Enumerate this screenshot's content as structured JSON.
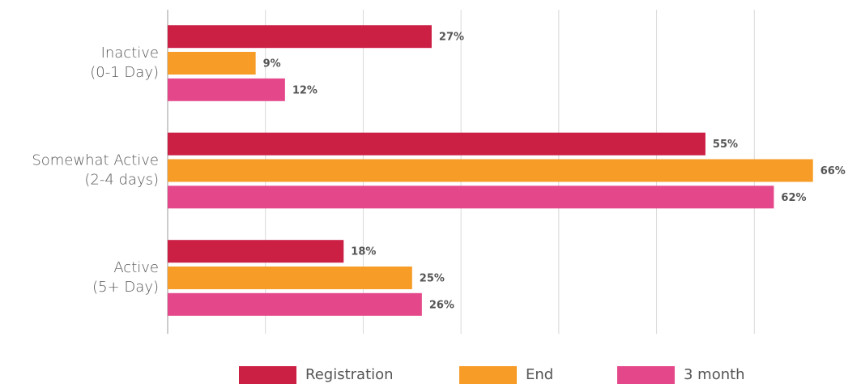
{
  "chart_data": {
    "type": "hbar",
    "categories": [
      [
        "Inactive",
        "(0-1 Day)"
      ],
      [
        "Somewhat Active",
        "(2-4 days)"
      ],
      [
        "Active",
        "(5+ Day)"
      ]
    ],
    "series": [
      {
        "name": "Registration",
        "color": "#cc1f44",
        "values": [
          27,
          55,
          18
        ],
        "value_labels": [
          "27%",
          "55%",
          "18%"
        ]
      },
      {
        "name": "End",
        "color": "#f79c27",
        "values": [
          9,
          66,
          25
        ],
        "value_labels": [
          "9%",
          "66%",
          "25%"
        ]
      },
      {
        "name": "3 month",
        "color": "#e5488a",
        "values": [
          12,
          62,
          26
        ],
        "value_labels": [
          "12%",
          "62%",
          "26%"
        ]
      }
    ],
    "xlim": [
      0,
      70
    ],
    "xticks": [
      0,
      10,
      20,
      30,
      40,
      50,
      60
    ],
    "grid": true,
    "legend": "bottom"
  }
}
